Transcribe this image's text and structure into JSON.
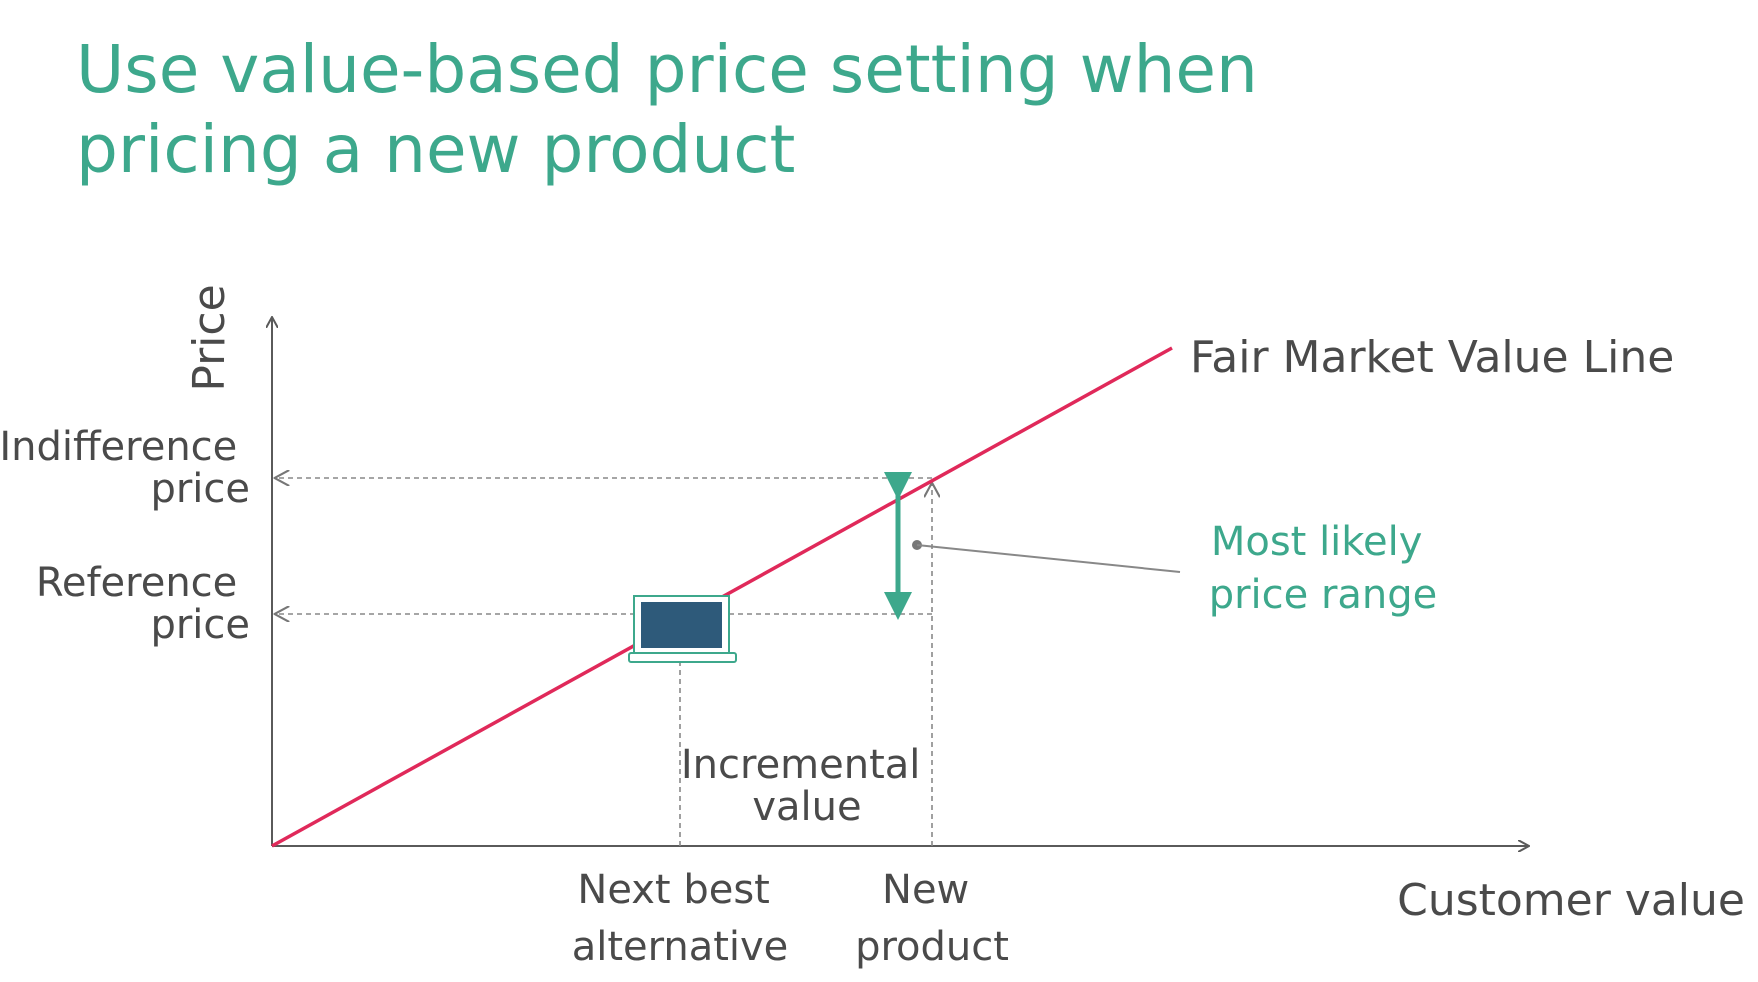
{
  "title": {
    "line1": "Use value-based price setting when",
    "line2": "pricing a new product"
  },
  "axes": {
    "y_label": "Price",
    "x_label": "Customer value"
  },
  "y_ticks": {
    "indifference": {
      "line1": "Indifference",
      "line2": "price"
    },
    "reference": {
      "line1": "Reference",
      "line2": "price"
    }
  },
  "x_ticks": {
    "next_best": {
      "line1": "Next best",
      "line2": "alternative"
    },
    "new_product": {
      "line1": "New",
      "line2": "product"
    }
  },
  "line_label": "Fair Market Value Line",
  "incremental_value": {
    "line1": "Incremental",
    "line2": "value"
  },
  "price_range": {
    "line1": "Most likely",
    "line2": "price range"
  },
  "icon": "laptop-icon",
  "colors": {
    "accent_green": "#3da88c",
    "value_line": "#e0295a",
    "axis_gray": "#5a5a5a",
    "text_gray": "#4a4a4a",
    "laptop_screen": "#2e5a7a"
  }
}
